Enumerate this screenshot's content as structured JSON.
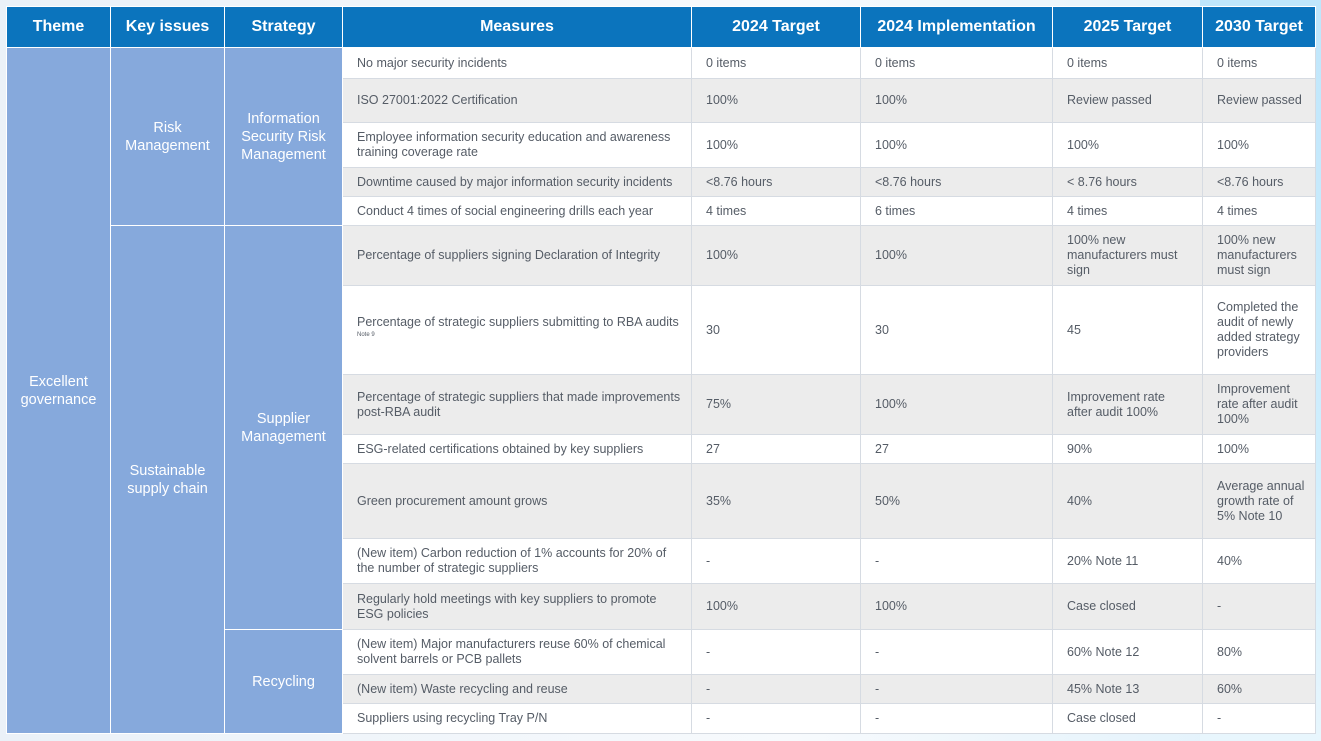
{
  "headers": [
    "Theme",
    "Key issues",
    "Strategy",
    "Measures",
    "2024 Target",
    "2024 Implementation",
    "2025 Target",
    "2030 Target"
  ],
  "theme": "Excellent governance",
  "key_issues": [
    "Risk Management",
    "Sustainable supply chain"
  ],
  "strategies": [
    "Information Security Risk Management",
    "Supplier Management",
    "Recycling"
  ],
  "note9": "Note 9",
  "rows": [
    {
      "measure": "No major security incidents",
      "t2024": "0 items",
      "i2024": "0 items",
      "t2025": "0 items",
      "t2030": "0 items"
    },
    {
      "measure": "ISO 27001:2022 Certification",
      "t2024": "100%",
      "i2024": "100%",
      "t2025": "Review passed",
      "t2030": "Review passed"
    },
    {
      "measure": "Employee information security education and awareness training coverage rate",
      "t2024": "100%",
      "i2024": "100%",
      "t2025": "100%",
      "t2030": "100%"
    },
    {
      "measure": "Downtime caused by major information security incidents",
      "t2024": "<8.76 hours",
      "i2024": "<8.76 hours",
      "t2025": "< 8.76 hours",
      "t2030": "<8.76 hours"
    },
    {
      "measure": "Conduct 4 times of social engineering drills each year",
      "t2024": "4 times",
      "i2024": "6 times",
      "t2025": "4 times",
      "t2030": "4 times"
    },
    {
      "measure": "Percentage of suppliers signing Declaration of Integrity",
      "t2024": "100%",
      "i2024": "100%",
      "t2025": "100% new manufacturers must sign",
      "t2030": "100% new manufacturers must sign"
    },
    {
      "measure": "Percentage of strategic suppliers submitting to RBA audits",
      "t2024": "30",
      "i2024": "30",
      "t2025": "45",
      "t2030": "Completed the audit of newly added strategy providers"
    },
    {
      "measure": "Percentage of strategic suppliers that made improvements post-RBA audit",
      "t2024": "75%",
      "i2024": "100%",
      "t2025": "Improvement rate after audit 100%",
      "t2030": "Improvement rate after audit 100%"
    },
    {
      "measure": "ESG-related certifications obtained by key suppliers",
      "t2024": "27",
      "i2024": "27",
      "t2025": "90%",
      "t2030": "100%"
    },
    {
      "measure": "Green procurement amount grows",
      "t2024": "35%",
      "i2024": "50%",
      "t2025": "40%",
      "t2030": "Average annual growth rate of 5% Note 10"
    },
    {
      "measure": "(New item) Carbon reduction of 1% accounts for 20% of the number of strategic suppliers",
      "t2024": "-",
      "i2024": "-",
      "t2025": "20% Note 11",
      "t2030": "40%"
    },
    {
      "measure": "Regularly hold meetings with key suppliers to promote ESG policies",
      "t2024": "100%",
      "i2024": "100%",
      "t2025": "Case closed",
      "t2030": "-"
    },
    {
      "measure": "(New item) Major manufacturers reuse 60% of chemical solvent barrels or PCB pallets",
      "t2024": "-",
      "i2024": "-",
      "t2025": "60% Note 12",
      "t2030": "80%"
    },
    {
      "measure": "(New item) Waste recycling and reuse",
      "t2024": "-",
      "i2024": "-",
      "t2025": "45% Note 13",
      "t2030": "60%"
    },
    {
      "measure": "Suppliers using recycling Tray P/N",
      "t2024": "-",
      "i2024": "-",
      "t2025": "Case closed",
      "t2030": "-"
    }
  ]
}
